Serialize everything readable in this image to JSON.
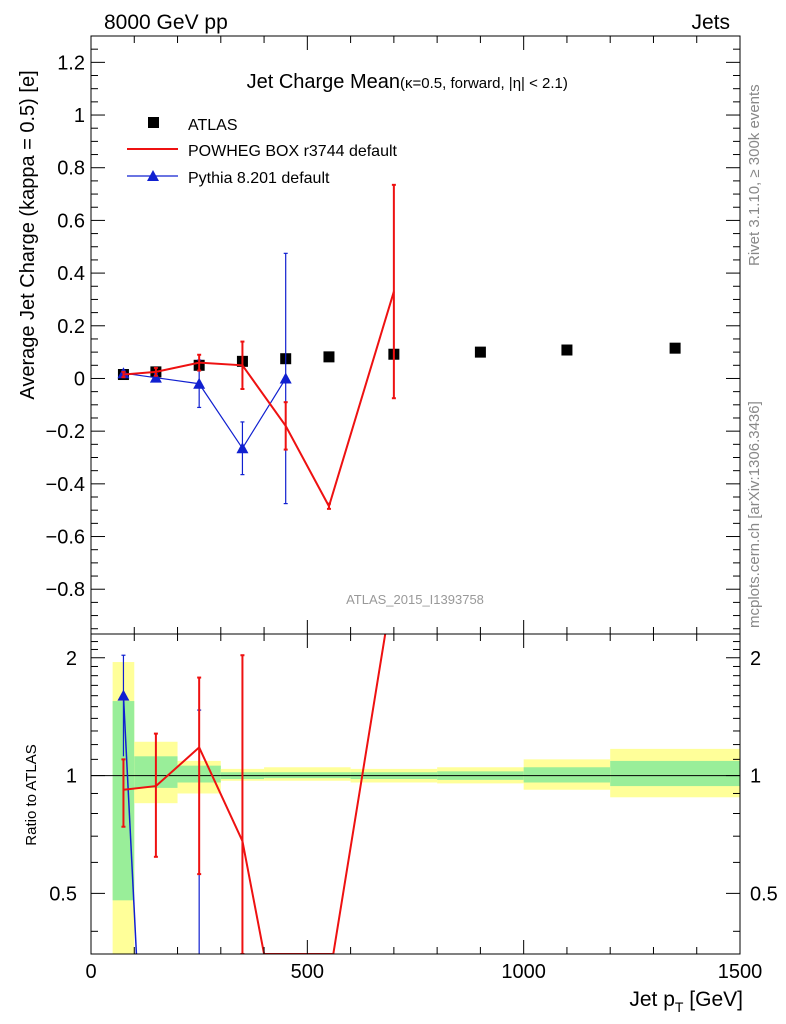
{
  "header": {
    "left": "8000 GeV pp",
    "right": "Jets"
  },
  "side_text": {
    "rivet": "Rivet 3.1.10, ≥ 300k events",
    "mcplots": "mcplots.cern.ch [arXiv:1306.3436]"
  },
  "colors": {
    "atlas": "#000000",
    "powheg": "#ee1111",
    "pythia": "#1020d0",
    "band_inner": "#99ee99",
    "band_outer": "#ffff99"
  },
  "chart_data": [
    {
      "type": "scatter",
      "panel": "main",
      "title": "Jet Charge Mean",
      "subtitle": "(κ=0.5, forward, |η| < 2.1)",
      "analysis_id": "ATLAS_2015_I1393758",
      "ylabel": "Average Jet Charge (kappa = 0.5) [e]",
      "xlim": [
        0,
        1500
      ],
      "ylim": [
        -0.97,
        1.3
      ],
      "yticks": [
        -0.8,
        -0.6,
        -0.4,
        -0.2,
        0,
        0.2,
        0.4,
        0.6,
        0.8,
        1,
        1.2
      ],
      "ytick_labels": [
        "−0.8",
        "−0.6",
        "−0.4",
        "−0.2",
        "0",
        "0.2",
        "0.4",
        "0.6",
        "0.8",
        "1",
        "1.2"
      ],
      "legend_position": "top-left",
      "series": [
        {
          "name": "ATLAS",
          "style": "points",
          "x": [
            75,
            150,
            250,
            350,
            450,
            550,
            700,
            900,
            1100,
            1350
          ],
          "y": [
            0.015,
            0.025,
            0.05,
            0.065,
            0.075,
            0.082,
            0.092,
            0.1,
            0.108,
            0.115
          ]
        },
        {
          "name": "POWHEG BOX r3744 default",
          "style": "line",
          "x": [
            75,
            150,
            250,
            350,
            450,
            550,
            700
          ],
          "y": [
            0.015,
            0.025,
            0.06,
            0.05,
            -0.18,
            -0.485,
            0.33
          ],
          "yerr": [
            0.01,
            0.015,
            0.03,
            0.09,
            0.09,
            0.01,
            0.405
          ]
        },
        {
          "name": "Pythia 8.201 default",
          "style": "line-triangle",
          "x": [
            75,
            150,
            250,
            350,
            450
          ],
          "y": [
            0.02,
            0.003,
            -0.02,
            -0.265,
            0.0
          ],
          "yerr": [
            0.01,
            0.015,
            0.09,
            0.1,
            0.475
          ]
        }
      ]
    },
    {
      "type": "line",
      "panel": "ratio",
      "ylabel": "Ratio to ATLAS",
      "xlabel": "Jet p_T [GeV]",
      "xlim": [
        0,
        1500
      ],
      "ylim": [
        0.35,
        2.3
      ],
      "xticks": [
        0,
        500,
        1000,
        1500
      ],
      "xtick_labels": [
        "0",
        "500",
        "1000",
        "1500"
      ],
      "yticks": [
        0.5,
        1,
        2
      ],
      "ytick_labels": [
        "0.5",
        "1",
        "2"
      ],
      "bands": [
        {
          "xlo": 50,
          "xhi": 100,
          "inner": [
            0.48,
            1.55
          ],
          "outer": [
            0.35,
            1.95
          ]
        },
        {
          "xlo": 100,
          "xhi": 200,
          "inner": [
            0.93,
            1.12
          ],
          "outer": [
            0.85,
            1.22
          ]
        },
        {
          "xlo": 200,
          "xhi": 300,
          "inner": [
            0.96,
            1.06
          ],
          "outer": [
            0.9,
            1.09
          ]
        },
        {
          "xlo": 300,
          "xhi": 400,
          "inner": [
            0.98,
            1.02
          ],
          "outer": [
            0.97,
            1.04
          ]
        },
        {
          "xlo": 400,
          "xhi": 600,
          "inner": [
            0.985,
            1.02
          ],
          "outer": [
            0.97,
            1.05
          ]
        },
        {
          "xlo": 600,
          "xhi": 800,
          "inner": [
            0.98,
            1.02
          ],
          "outer": [
            0.96,
            1.04
          ]
        },
        {
          "xlo": 800,
          "xhi": 1000,
          "inner": [
            0.975,
            1.025
          ],
          "outer": [
            0.955,
            1.05
          ]
        },
        {
          "xlo": 1000,
          "xhi": 1200,
          "inner": [
            0.96,
            1.05
          ],
          "outer": [
            0.92,
            1.1
          ]
        },
        {
          "xlo": 1200,
          "xhi": 1500,
          "inner": [
            0.94,
            1.09
          ],
          "outer": [
            0.88,
            1.17
          ]
        }
      ],
      "series": [
        {
          "name": "POWHEG BOX r3744 default",
          "x": [
            75,
            150,
            250,
            350,
            400,
            560,
            680
          ],
          "y": [
            0.92,
            0.94,
            1.18,
            0.68,
            0.35,
            0.35,
            2.3
          ],
          "yerr_lo": [
            0.74,
            0.62,
            0.56,
            0.35,
            null,
            null,
            null
          ],
          "yerr_hi": [
            1.1,
            1.28,
            1.78,
            2.03,
            null,
            null,
            null
          ]
        },
        {
          "name": "Pythia 8.201 default",
          "x": [
            75,
            105,
            250
          ],
          "y": [
            1.6,
            0.35,
            null
          ],
          "yerr_lo": [
            1.12,
            null,
            0.35
          ],
          "yerr_hi": [
            2.03,
            null,
            1.47
          ]
        }
      ]
    }
  ]
}
